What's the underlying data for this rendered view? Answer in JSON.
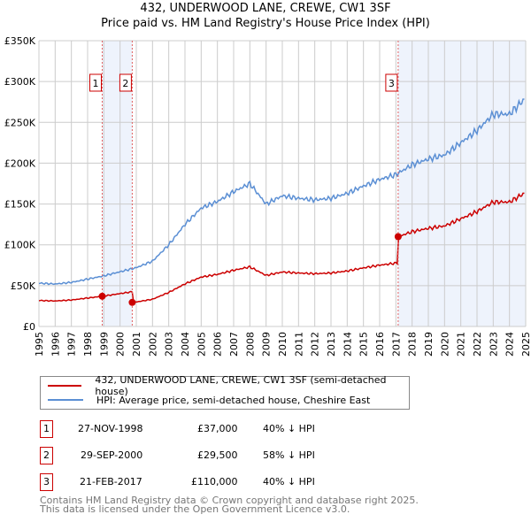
{
  "chart_data": {
    "type": "line",
    "title": "432, UNDERWOOD LANE, CREWE, CW1 3SF",
    "subtitle": "Price paid vs. HM Land Registry's House Price Index (HPI)",
    "xlim": [
      1995,
      2025
    ],
    "ylim": [
      0,
      350000
    ],
    "x_ticks": [
      "1995",
      "1996",
      "1997",
      "1998",
      "1999",
      "2000",
      "2001",
      "2002",
      "2003",
      "2004",
      "2005",
      "2006",
      "2007",
      "2008",
      "2009",
      "2010",
      "2011",
      "2012",
      "2013",
      "2014",
      "2015",
      "2016",
      "2017",
      "2018",
      "2019",
      "2020",
      "2021",
      "2022",
      "2023",
      "2024",
      "2025"
    ],
    "y_ticks": [
      {
        "v": 0,
        "l": "£0"
      },
      {
        "v": 50000,
        "l": "£50K"
      },
      {
        "v": 100000,
        "l": "£100K"
      },
      {
        "v": 150000,
        "l": "£150K"
      },
      {
        "v": 200000,
        "l": "£200K"
      },
      {
        "v": 250000,
        "l": "£250K"
      },
      {
        "v": 300000,
        "l": "£300K"
      },
      {
        "v": 350000,
        "l": "£350K"
      }
    ],
    "grid": true,
    "series": [
      {
        "name": "432, UNDERWOOD LANE, CREWE, CW1 3SF (semi-detached house)",
        "color": "#cc0000",
        "derived": "price paid indexed by HPI"
      },
      {
        "name": "HPI: Average price, semi-detached house, Cheshire East",
        "color": "#5b8fd4",
        "x": [
          1995,
          1996,
          1997,
          1998,
          1999,
          2000,
          2001,
          2002,
          2003,
          2004,
          2005,
          2006,
          2007,
          2008,
          2009,
          2010,
          2011,
          2012,
          2013,
          2014,
          2015,
          2016,
          2017,
          2018,
          2019,
          2020,
          2021,
          2022,
          2023,
          2024,
          2025
        ],
        "y": [
          53000,
          52000,
          54000,
          58000,
          62000,
          67000,
          72000,
          80000,
          100000,
          125000,
          145000,
          153000,
          165000,
          175000,
          150000,
          160000,
          157000,
          155000,
          157000,
          163000,
          172000,
          180000,
          186000,
          198000,
          205000,
          210000,
          225000,
          240000,
          260000,
          260000,
          280000
        ]
      }
    ],
    "sales": [
      {
        "id": "1",
        "x": 1998.9,
        "date": "27-NOV-1998",
        "price": 37000,
        "price_label": "£37,000",
        "hpi": "40% ↓ HPI"
      },
      {
        "id": "2",
        "x": 2000.75,
        "date": "29-SEP-2000",
        "price": 29500,
        "price_label": "£29,500",
        "hpi": "58% ↓ HPI"
      },
      {
        "id": "3",
        "x": 2017.14,
        "date": "21-FEB-2017",
        "price": 110000,
        "price_label": "£110,000",
        "hpi": "40% ↓ HPI"
      }
    ]
  },
  "footer": [
    "Contains HM Land Registry data © Crown copyright and database right 2025.",
    "This data is licensed under the Open Government Licence v3.0."
  ]
}
